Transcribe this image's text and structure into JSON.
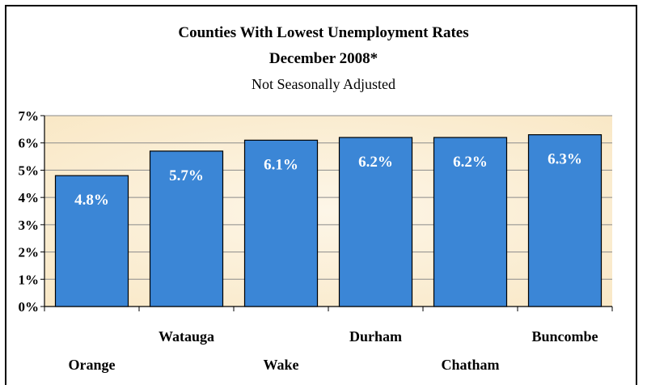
{
  "chart_data": {
    "type": "bar",
    "title": "Counties With Lowest Unemployment Rates",
    "subtitle": "December 2008*",
    "note": "Not Seasonally Adjusted",
    "categories": [
      "Orange",
      "Watauga",
      "Wake",
      "Durham",
      "Chatham",
      "Buncombe"
    ],
    "values": [
      4.8,
      5.7,
      6.1,
      6.2,
      6.2,
      6.3
    ],
    "data_labels": [
      "4.8%",
      "5.7%",
      "6.1%",
      "6.2%",
      "6.2%",
      "6.3%"
    ],
    "y_ticks": [
      "0%",
      "1%",
      "2%",
      "3%",
      "4%",
      "5%",
      "6%",
      "7%"
    ],
    "ylim": [
      0,
      7
    ],
    "grid": true,
    "colors": {
      "bar": "#3b86d6",
      "bar_border": "#000000",
      "plot_bg": "#f9e8c6",
      "plot_bg_center": "#fdf6e8",
      "grid": "#8a8a8a",
      "label": "#ffffff"
    }
  }
}
